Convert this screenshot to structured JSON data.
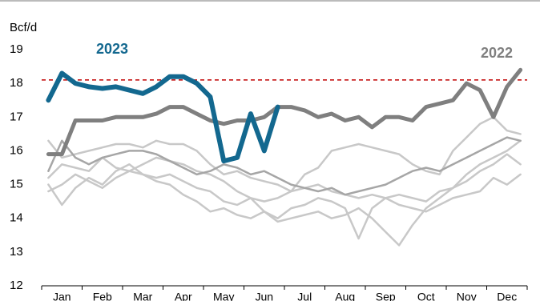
{
  "chart_data": {
    "type": "line",
    "y_label": "Bcf/d",
    "categories": [
      null,
      "Jan",
      null,
      null,
      "Feb",
      null,
      null,
      "Mar",
      null,
      null,
      "Apr",
      null,
      null,
      "May",
      null,
      null,
      "Jun",
      null,
      null,
      "Jul",
      null,
      null,
      "Aug",
      null,
      null,
      "Sep",
      null,
      null,
      "Oct",
      null,
      null,
      "Nov",
      null,
      null,
      "Dec",
      null
    ],
    "ylim": [
      12,
      19
    ],
    "yticks": [
      12,
      13,
      14,
      15,
      16,
      17,
      18,
      19
    ],
    "reference_line": {
      "value": 18.1,
      "color": "#c00000"
    },
    "series": [
      {
        "color": "#c8c8c8",
        "width": 2.5,
        "values": [
          15.0,
          14.4,
          14.9,
          15.2,
          15.0,
          15.4,
          15.6,
          15.3,
          15.2,
          15.3,
          15.1,
          14.9,
          14.8,
          14.5,
          14.4,
          14.6,
          14.2,
          14.0,
          14.3,
          14.4,
          14.6,
          14.5,
          14.3,
          13.4,
          14.3,
          14.6,
          14.7,
          14.6,
          14.5,
          14.8,
          14.9,
          15.3,
          15.6,
          15.8,
          16.0,
          16.3
        ]
      },
      {
        "color": "#c8c8c8",
        "width": 2.5,
        "values": [
          16.3,
          15.8,
          15.9,
          16.0,
          16.1,
          16.2,
          16.2,
          16.1,
          16.3,
          16.2,
          16.2,
          16.0,
          15.6,
          15.3,
          15.4,
          15.2,
          15.1,
          15.0,
          14.8,
          15.3,
          15.5,
          16.0,
          16.1,
          16.2,
          16.1,
          16.0,
          15.9,
          15.6,
          15.4,
          15.3,
          16.0,
          16.4,
          16.8,
          17.0,
          16.6,
          16.5
        ]
      },
      {
        "color": "#c8c8c8",
        "width": 2.5,
        "values": [
          15.2,
          15.6,
          15.5,
          15.4,
          15.8,
          15.5,
          15.4,
          15.6,
          15.8,
          15.7,
          15.6,
          15.4,
          15.3,
          15.1,
          14.8,
          14.6,
          14.5,
          14.6,
          14.8,
          14.9,
          15.0,
          14.8,
          14.7,
          14.6,
          14.7,
          14.6,
          14.4,
          14.3,
          14.2,
          14.4,
          14.6,
          14.7,
          14.8,
          15.2,
          15.0,
          15.3
        ]
      },
      {
        "color": "#c8c8c8",
        "width": 2.5,
        "values": [
          14.8,
          15.0,
          15.3,
          15.1,
          14.9,
          15.2,
          15.4,
          15.3,
          15.1,
          15.0,
          14.7,
          14.5,
          14.2,
          14.3,
          14.1,
          14.0,
          14.2,
          13.9,
          14.0,
          14.1,
          14.2,
          14.0,
          14.1,
          14.3,
          14.0,
          13.6,
          13.2,
          13.8,
          14.3,
          14.6,
          14.9,
          15.1,
          15.4,
          15.6,
          15.9,
          15.6
        ]
      },
      {
        "color": "#a6a6a6",
        "width": 2.5,
        "values": [
          15.4,
          16.3,
          15.8,
          15.6,
          15.8,
          15.9,
          16.0,
          16.0,
          15.9,
          15.7,
          15.5,
          15.3,
          15.4,
          15.6,
          15.5,
          15.3,
          15.4,
          15.2,
          15.0,
          14.9,
          14.8,
          14.9,
          14.7,
          14.8,
          14.9,
          15.0,
          15.2,
          15.4,
          15.5,
          15.4,
          15.6,
          15.8,
          16.0,
          16.2,
          16.4,
          16.3
        ]
      },
      {
        "name": "2022",
        "color": "#7f7f7f",
        "width": 5,
        "values": [
          15.9,
          15.9,
          16.9,
          16.9,
          16.9,
          17.0,
          17.0,
          17.0,
          17.1,
          17.3,
          17.3,
          17.1,
          16.9,
          16.8,
          16.9,
          16.9,
          17.0,
          17.3,
          17.3,
          17.2,
          17.0,
          17.1,
          16.9,
          17.0,
          16.7,
          17.0,
          17.0,
          16.9,
          17.3,
          17.4,
          17.5,
          18.0,
          17.8,
          17.0,
          17.9,
          18.4
        ]
      },
      {
        "name": "2023",
        "color": "#13688f",
        "width": 6,
        "values": [
          17.5,
          18.3,
          18.0,
          17.9,
          17.85,
          17.9,
          17.8,
          17.7,
          17.9,
          18.2,
          18.2,
          18.0,
          17.6,
          15.7,
          15.8,
          17.1,
          16.0,
          17.3,
          null,
          null,
          null,
          null,
          null,
          null,
          null,
          null,
          null,
          null,
          null,
          null,
          null,
          null,
          null,
          null,
          null,
          null
        ]
      }
    ]
  }
}
